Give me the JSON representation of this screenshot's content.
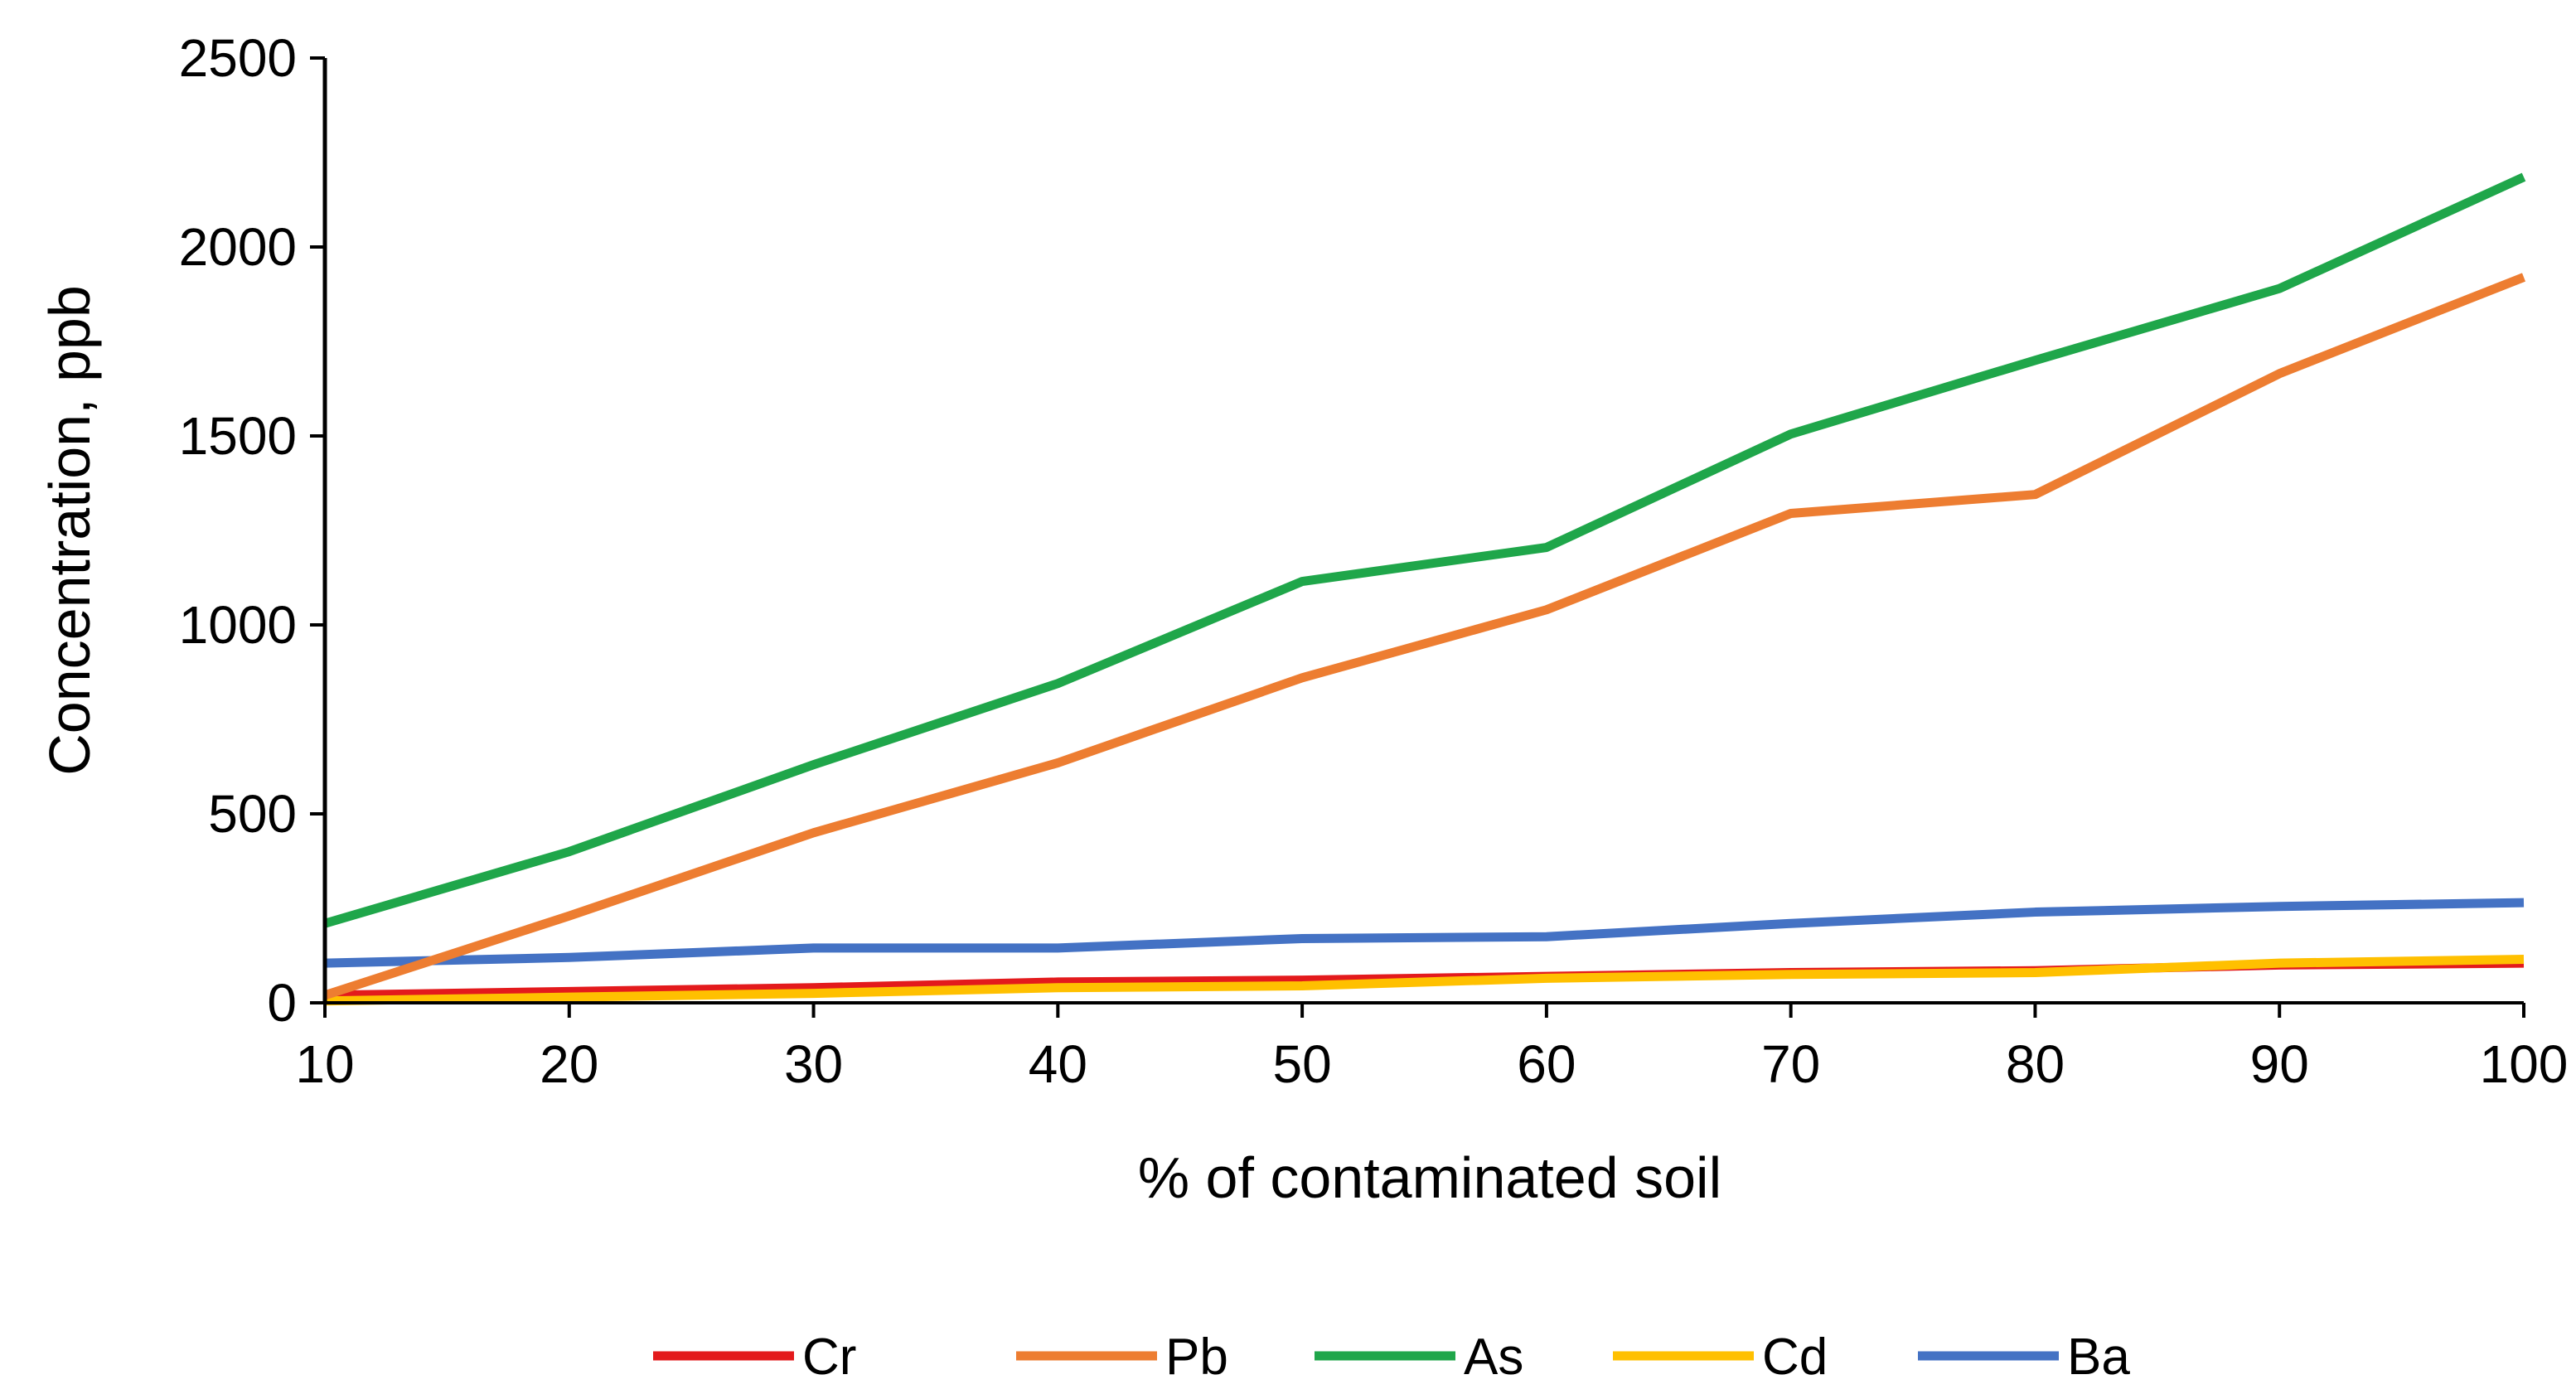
{
  "chart_data": {
    "type": "line",
    "title": "",
    "xlabel": "% of contaminated soil",
    "ylabel": "Concentration, ppb",
    "x": [
      10,
      20,
      30,
      40,
      50,
      60,
      70,
      80,
      90,
      100
    ],
    "xlim": [
      10,
      100
    ],
    "ylim": [
      0,
      2500
    ],
    "xticks": [
      "10",
      "20",
      "30",
      "40",
      "50",
      "60",
      "70",
      "80",
      "90",
      "100"
    ],
    "yticks": [
      "0",
      "500",
      "1000",
      "1500",
      "2000",
      "2500"
    ],
    "grid": false,
    "legend_position": "bottom",
    "series": [
      {
        "name": "Cr",
        "color": "#e31a1c",
        "values": [
          20,
          30,
          40,
          55,
          60,
          70,
          80,
          85,
          100,
          105
        ]
      },
      {
        "name": "Pb",
        "color": "#ed7d31",
        "values": [
          20,
          230,
          450,
          635,
          860,
          1040,
          1295,
          1345,
          1665,
          1920
        ]
      },
      {
        "name": "As",
        "color": "#1fa64a",
        "values": [
          210,
          400,
          630,
          845,
          1115,
          1205,
          1505,
          1700,
          1890,
          2185
        ]
      },
      {
        "name": "Cd",
        "color": "#ffc000",
        "values": [
          5,
          15,
          25,
          40,
          45,
          65,
          75,
          80,
          105,
          115
        ]
      },
      {
        "name": "Ba",
        "color": "#4472c4",
        "values": [
          105,
          120,
          145,
          145,
          170,
          175,
          210,
          240,
          255,
          265
        ]
      }
    ]
  }
}
